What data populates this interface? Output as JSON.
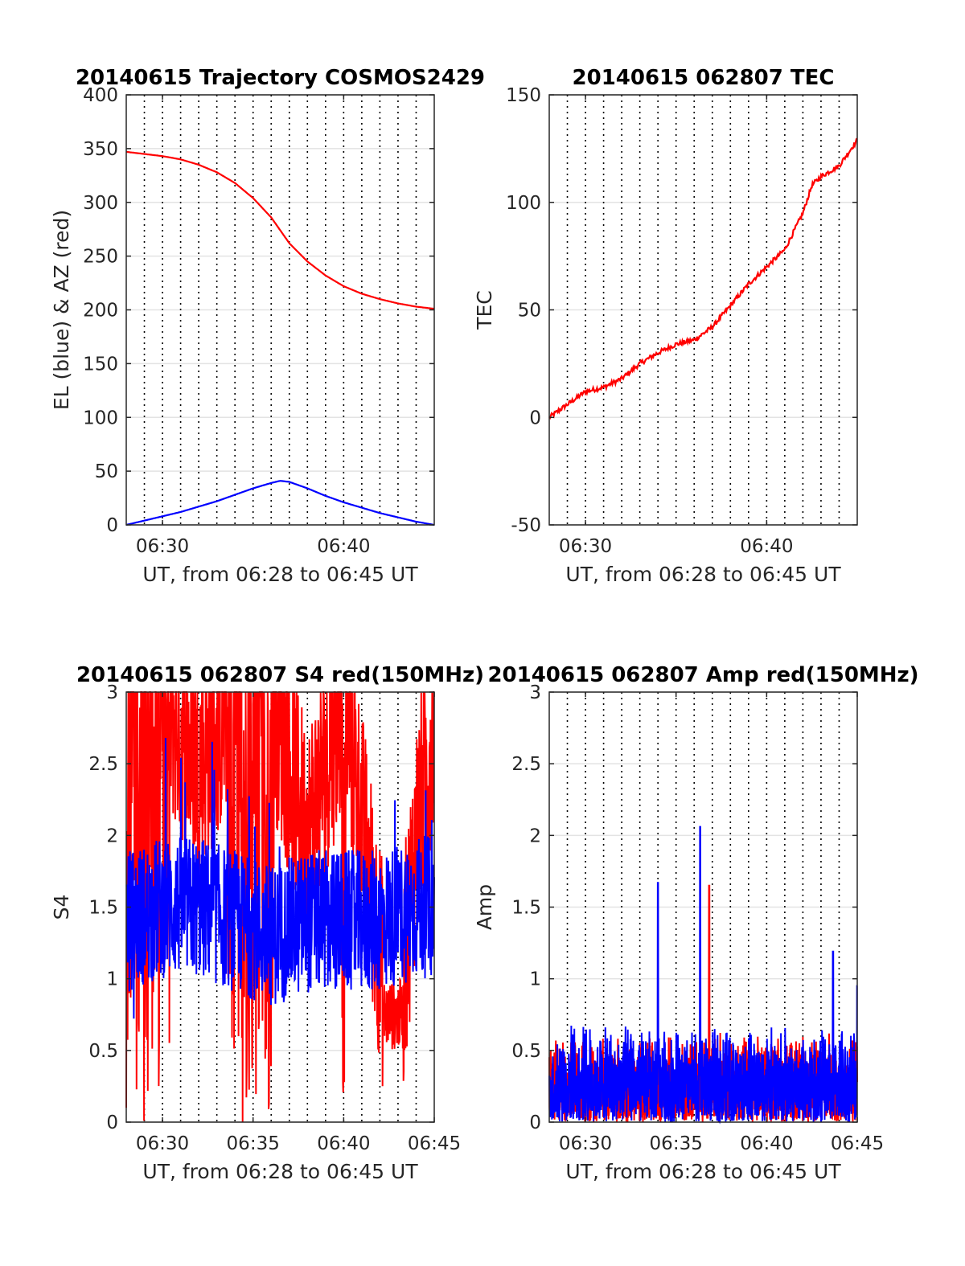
{
  "chart_data": [
    {
      "type": "line",
      "title": "20140615 Trajectory COSMOS2429",
      "xlabel": "UT, from 06:28 to 06:45 UT",
      "ylabel": "EL (blue) & AZ (red)",
      "xlim": [
        "06:28",
        "06:45"
      ],
      "ylim": [
        0,
        400
      ],
      "x_ticks": [
        "06:30",
        "06:40"
      ],
      "y_ticks": [
        "0",
        "50",
        "100",
        "150",
        "200",
        "250",
        "300",
        "350",
        "400"
      ],
      "grid": "dotted vertical lines every minute, light horizontal lines at y ticks",
      "series": [
        {
          "color": "#ff0000",
          "x": [
            "06:28",
            "06:29",
            "06:30",
            "06:31",
            "06:32",
            "06:33",
            "06:34",
            "06:35",
            "06:36",
            "06:36:30",
            "06:37",
            "06:38",
            "06:39",
            "06:40",
            "06:41",
            "06:42",
            "06:43",
            "06:44",
            "06:45"
          ],
          "values": [
            347,
            345,
            343,
            340,
            335,
            328,
            318,
            304,
            286,
            274,
            262,
            245,
            232,
            222,
            215,
            210,
            206,
            203,
            201
          ]
        },
        {
          "color": "#0000ff",
          "x": [
            "06:28",
            "06:29",
            "06:30",
            "06:31",
            "06:32",
            "06:33",
            "06:34",
            "06:35",
            "06:36",
            "06:36:30",
            "06:37",
            "06:38",
            "06:39",
            "06:40",
            "06:41",
            "06:42",
            "06:43",
            "06:44",
            "06:45"
          ],
          "values": [
            0,
            4,
            8,
            12,
            17,
            22,
            28,
            34,
            39,
            41,
            40,
            34,
            27,
            21,
            16,
            11,
            7,
            3,
            0
          ]
        }
      ]
    },
    {
      "type": "line",
      "title": "20140615 062807 TEC",
      "xlabel": "UT, from 06:28 to 06:45 UT",
      "ylabel": "TEC",
      "xlim": [
        "06:28",
        "06:45"
      ],
      "ylim": [
        -50,
        150
      ],
      "x_ticks": [
        "06:30",
        "06:40"
      ],
      "y_ticks": [
        "-50",
        "0",
        "50",
        "100",
        "150"
      ],
      "grid": "dotted vertical lines every minute, light horizontal lines at y ticks",
      "series": [
        {
          "color": "#ff0000",
          "x": [
            "06:28",
            "06:29",
            "06:30",
            "06:31",
            "06:32",
            "06:33",
            "06:34",
            "06:35",
            "06:36",
            "06:37",
            "06:38",
            "06:39",
            "06:40",
            "06:41",
            "06:42",
            "06:42:30",
            "06:43",
            "06:44",
            "06:45"
          ],
          "values": [
            0,
            6,
            12,
            14,
            18,
            25,
            30,
            34,
            36,
            42,
            52,
            62,
            70,
            78,
            95,
            108,
            112,
            117,
            129
          ]
        }
      ]
    },
    {
      "type": "line",
      "title": "20140615 062807 S4 red(150MHz)",
      "xlabel": "UT, from 06:28 to 06:45 UT",
      "ylabel": "S4",
      "xlim": [
        "06:28",
        "06:45"
      ],
      "ylim": [
        0,
        3
      ],
      "x_ticks": [
        "06:30",
        "06:35",
        "06:40",
        "06:45"
      ],
      "y_ticks": [
        "0",
        "0.5",
        "1",
        "1.5",
        "2",
        "2.5",
        "3"
      ],
      "grid": "dotted vertical lines every minute, light horizontal lines at y ticks",
      "series": [
        {
          "color": "#ff0000",
          "description_of_signal": "noisy, mostly saturated at 3 from 06:28 to about 06:42, dips to 0 frequently; around 06:42-06:43 values near 0.5-1; 06:43-06:45 values 1-3",
          "x": [
            "06:28",
            "06:30",
            "06:32",
            "06:34",
            "06:36",
            "06:38",
            "06:40",
            "06:42",
            "06:42:30",
            "06:43",
            "06:44",
            "06:45"
          ],
          "values": [
            3,
            3,
            2.5,
            3,
            3,
            2,
            3,
            1.2,
            0.6,
            0.6,
            2,
            2.8
          ]
        },
        {
          "color": "#0000ff",
          "description_of_signal": "noisy, fluctuating mostly between 1 and 2 around a mean near 1.4",
          "x": [
            "06:28",
            "06:30",
            "06:32",
            "06:34",
            "06:36",
            "06:38",
            "06:40",
            "06:42",
            "06:44",
            "06:45"
          ],
          "values": [
            1.4,
            1.5,
            1.5,
            1.4,
            1.3,
            1.4,
            1.4,
            1.4,
            1.5,
            1.5
          ]
        }
      ]
    },
    {
      "type": "line",
      "title": "20140615 062807 Amp red(150MHz)",
      "xlabel": "UT, from 06:28 to 06:45 UT",
      "ylabel": "Amp",
      "xlim": [
        "06:28",
        "06:45"
      ],
      "ylim": [
        0,
        3
      ],
      "x_ticks": [
        "06:30",
        "06:35",
        "06:40",
        "06:45"
      ],
      "y_ticks": [
        "0",
        "0.5",
        "1",
        "1.5",
        "2",
        "2.5",
        "3"
      ],
      "grid": "dotted vertical lines every minute, light horizontal lines at y ticks",
      "series": [
        {
          "color": "#ff0000",
          "description_of_signal": "mostly hidden behind blue; visible spike near 06:36:50 reaching about 1.65",
          "x": [
            "06:36:50"
          ],
          "values": [
            1.65
          ]
        },
        {
          "color": "#0000ff",
          "description_of_signal": "dense noise from 0 up to about 0.5-0.8 envelope, with spikes",
          "x": [
            "06:34",
            "06:36:20",
            "06:43:40",
            "06:45"
          ],
          "values": [
            1.67,
            2.06,
            1.19,
            0.95
          ]
        }
      ]
    }
  ]
}
